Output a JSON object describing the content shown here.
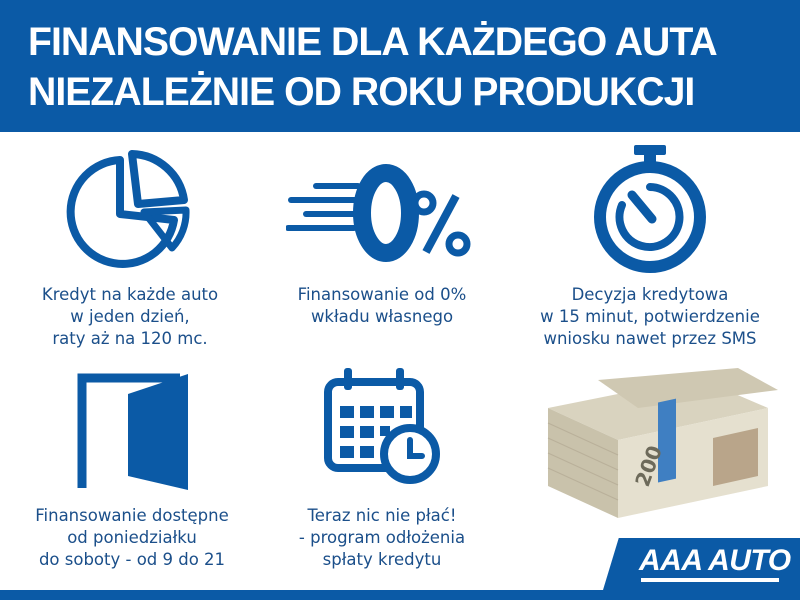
{
  "header": {
    "line1": "FINANSOWANIE DLA KAŻDEGO AUTA",
    "line2": "NIEZALEŻNIE OD ROKU PRODUKCJI"
  },
  "features": [
    {
      "icon": "pie-chart-icon",
      "lines": [
        "Kredyt na każde auto",
        "w jeden dzień,",
        "raty aż na 120 mc."
      ]
    },
    {
      "icon": "zero-percent-icon",
      "icon_text": "0%",
      "lines": [
        "Finansowanie od 0%",
        "wkładu własnego"
      ]
    },
    {
      "icon": "stopwatch-icon",
      "lines": [
        "Decyzja kredytowa",
        "w 15 minut, potwierdzenie",
        "wniosku nawet przez SMS"
      ]
    },
    {
      "icon": "door-icon",
      "lines": [
        "Finansowanie dostępne",
        "od poniedziałku",
        "do soboty - od 9 do 21"
      ]
    },
    {
      "icon": "calendar-clock-icon",
      "lines": [
        "Teraz nic nie płać!",
        "- program odłożenia",
        "spłaty kredytu"
      ]
    }
  ],
  "image": {
    "icon": "money-stack-icon",
    "banknote_value": "200"
  },
  "logo": {
    "text": "AAA AUTO"
  },
  "colors": {
    "brand_blue": "#0b5aa6",
    "text_blue": "#1b4f8a"
  }
}
